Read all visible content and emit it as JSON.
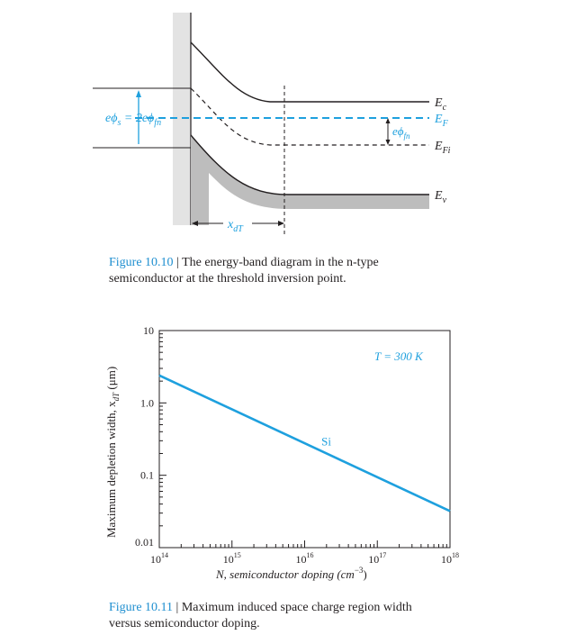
{
  "band_diagram": {
    "labels": {
      "Ec": "E",
      "Ec_sub": "c",
      "EF": "E",
      "EF_sub": "F",
      "EFi": "E",
      "EFi_sub": "Fi",
      "Ev": "E",
      "Ev_sub": "v",
      "surface_potential": "eϕ",
      "surface_potential_sub": "s",
      "surface_potential_rhs": " = 2eϕ",
      "surface_potential_rhs_sub": "fn",
      "fermi_potential": "eϕ",
      "fermi_potential_sub": "fn",
      "depletion_width": "x",
      "depletion_width_sub": "dT"
    },
    "caption_number": "Figure 10.10",
    "caption_sep": " | ",
    "caption_text_line1": "The energy-band diagram in the n-type",
    "caption_text_line2": "semiconductor at the threshold inversion point."
  },
  "chart_data": {
    "type": "line",
    "x_scale": "log",
    "y_scale": "log",
    "xlim": [
      100000000000000.0,
      1e+18
    ],
    "ylim": [
      0.01,
      10
    ],
    "x_ticks": [
      {
        "base": "10",
        "exp": "14"
      },
      {
        "base": "10",
        "exp": "15"
      },
      {
        "base": "10",
        "exp": "16"
      },
      {
        "base": "10",
        "exp": "17"
      },
      {
        "base": "10",
        "exp": "18"
      }
    ],
    "y_ticks": [
      "10",
      "1.0",
      "0.1",
      "0.01"
    ],
    "xlabel": "N, semiconductor doping (cm",
    "xlabel_exp": "−3",
    "xlabel_end": ")",
    "ylabel": "Maximum depletion width, x",
    "ylabel_sub": "dT",
    "ylabel_end": " (μm)",
    "annotation": "T = 300 K",
    "series": [
      {
        "name": "Si",
        "x": [
          100000000000000.0,
          1e+18
        ],
        "y": [
          2.4,
          0.032
        ],
        "color": "#1ea0de"
      }
    ],
    "caption_number": "Figure 10.11",
    "caption_sep": " | ",
    "caption_text_line1": "Maximum induced space charge region width",
    "caption_text_line2": "versus semiconductor doping."
  }
}
